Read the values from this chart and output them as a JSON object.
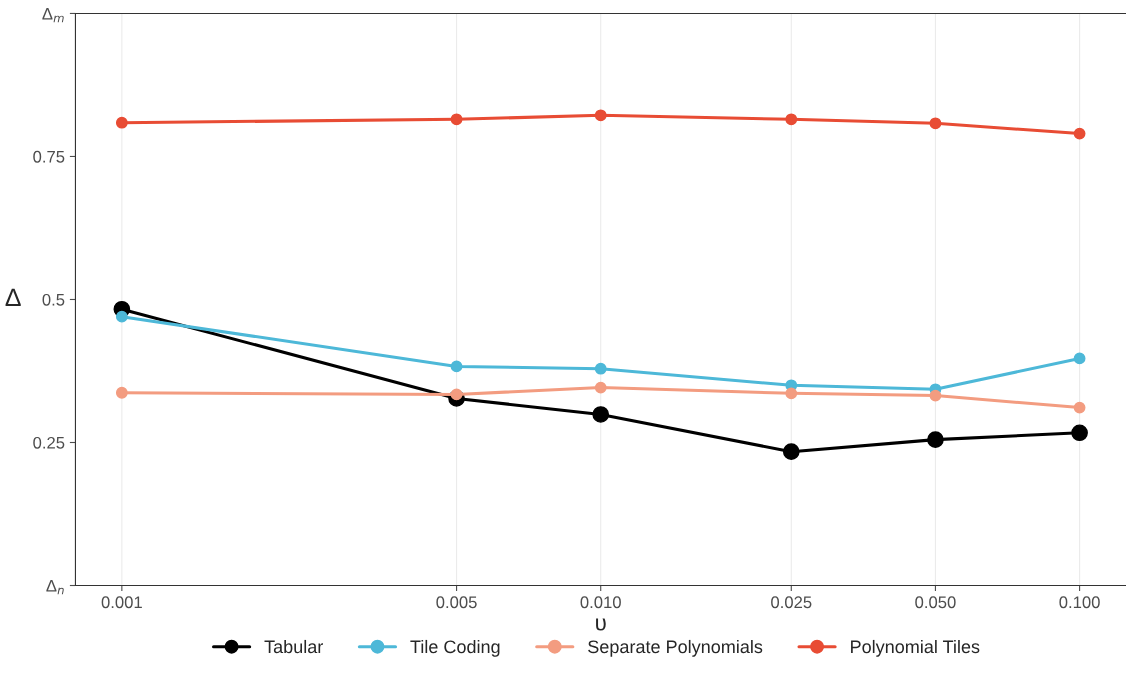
{
  "chart_data": {
    "type": "line",
    "xlabel": "υ",
    "ylabel": "Δ",
    "log": "x",
    "x": [
      0.001,
      0.005,
      0.01,
      0.025,
      0.05,
      0.1
    ],
    "xlim": [
      0.0008,
      0.125
    ],
    "xticks": [
      0.001,
      0.005,
      {
        "value": 0.01,
        "label": "0.010"
      },
      0.025,
      {
        "value": 0.05,
        "label": "0.050"
      },
      {
        "value": 0.1,
        "label": "0.100"
      }
    ],
    "ylim": [
      0,
      1
    ],
    "yticks": [
      {
        "value": 0,
        "label": "Δ$_{n}$"
      },
      0.25,
      0.5,
      0.75,
      {
        "value": 1,
        "label": "Δ$_{m}$"
      }
    ],
    "grid": "x",
    "legend": "bottom",
    "marker": "circle",
    "line_style": "solid",
    "series": [
      {
        "name": "Tabular",
        "color": "#000000",
        "values": [
          0.483,
          0.327,
          0.299,
          0.234,
          0.255,
          0.267
        ]
      },
      {
        "name": "Tile Coding",
        "color": "#4db8d8",
        "values": [
          0.47,
          0.383,
          0.379,
          0.35,
          0.343,
          0.397
        ]
      },
      {
        "name": "Separate Polynomials",
        "color": "#f39c80",
        "values": [
          0.337,
          0.334,
          0.346,
          0.336,
          0.332,
          0.311
        ]
      },
      {
        "name": "Polynomial Tiles",
        "color": "#e84c34",
        "values": [
          0.809,
          0.815,
          0.822,
          0.815,
          0.808,
          0.79
        ]
      }
    ]
  }
}
